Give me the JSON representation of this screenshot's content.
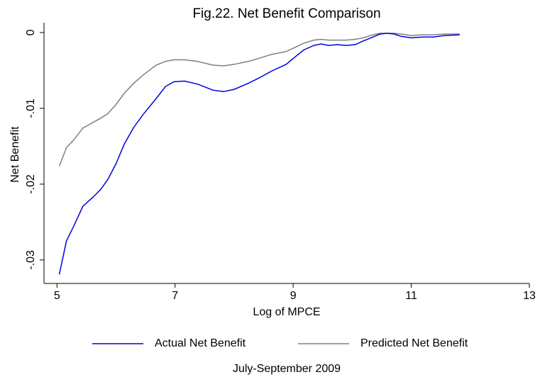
{
  "chart_data": {
    "type": "line",
    "title": "Fig.22. Net Benefit Comparison",
    "x_label": "Log of MPCE",
    "y_label": "Net Benefit",
    "note": "July-September 2009",
    "legend": "bottom",
    "grid": false,
    "xlim": [
      4.78,
      13
    ],
    "ylim": [
      -0.0331,
      0.0013
    ],
    "xticks": [
      5,
      7,
      9,
      11,
      13
    ],
    "yticks": [
      0,
      {
        "value": -0.01,
        "label": "-.01"
      },
      {
        "value": -0.02,
        "label": "-.02"
      },
      {
        "value": -0.03,
        "label": "-.03"
      }
    ],
    "x": [
      5.04,
      5.16,
      5.28,
      5.44,
      5.6,
      5.74,
      5.86,
      6.0,
      6.14,
      6.3,
      6.46,
      6.68,
      6.84,
      6.98,
      7.16,
      7.38,
      7.64,
      7.82,
      8.0,
      8.24,
      8.42,
      8.63,
      8.88,
      9.02,
      9.18,
      9.35,
      9.47,
      9.6,
      9.74,
      9.9,
      10.05,
      10.19,
      10.35,
      10.47,
      10.59,
      10.71,
      10.83,
      11.0,
      11.19,
      11.37,
      11.55,
      11.82
    ],
    "series": [
      {
        "name": "Actual Net Benefit",
        "color": "#0000e0",
        "values": [
          -0.0319,
          -0.0275,
          -0.0256,
          -0.0229,
          -0.0218,
          -0.0207,
          -0.0194,
          -0.0173,
          -0.0147,
          -0.0125,
          -0.0108,
          -0.0087,
          -0.0071,
          -0.0065,
          -0.0064,
          -0.0068,
          -0.0076,
          -0.0078,
          -0.0075,
          -0.0067,
          -0.006,
          -0.0051,
          -0.0042,
          -0.0033,
          -0.0023,
          -0.0017,
          -0.0015,
          -0.0017,
          -0.0016,
          -0.0017,
          -0.0016,
          -0.0011,
          -0.0006,
          -0.0002,
          -0.0001,
          -0.0002,
          -0.0005,
          -0.0007,
          -0.0006,
          -0.0006,
          -0.0004,
          -0.0003
        ]
      },
      {
        "name": "Predicted Net Benefit",
        "color": "#808080",
        "values": [
          -0.0176,
          -0.0152,
          -0.0142,
          -0.0126,
          -0.0119,
          -0.0113,
          -0.0107,
          -0.0095,
          -0.008,
          -0.0067,
          -0.0056,
          -0.0043,
          -0.0038,
          -0.0036,
          -0.0036,
          -0.0038,
          -0.0043,
          -0.0044,
          -0.0042,
          -0.0038,
          -0.0034,
          -0.0029,
          -0.0025,
          -0.002,
          -0.0014,
          -0.001,
          -0.0009,
          -0.001,
          -0.001,
          -0.001,
          -0.0009,
          -0.0007,
          -0.0003,
          -0.0001,
          -0.0001,
          -0.0001,
          -0.0002,
          -0.0004,
          -0.0003,
          -0.0003,
          -0.0002,
          -0.0002
        ]
      }
    ]
  }
}
